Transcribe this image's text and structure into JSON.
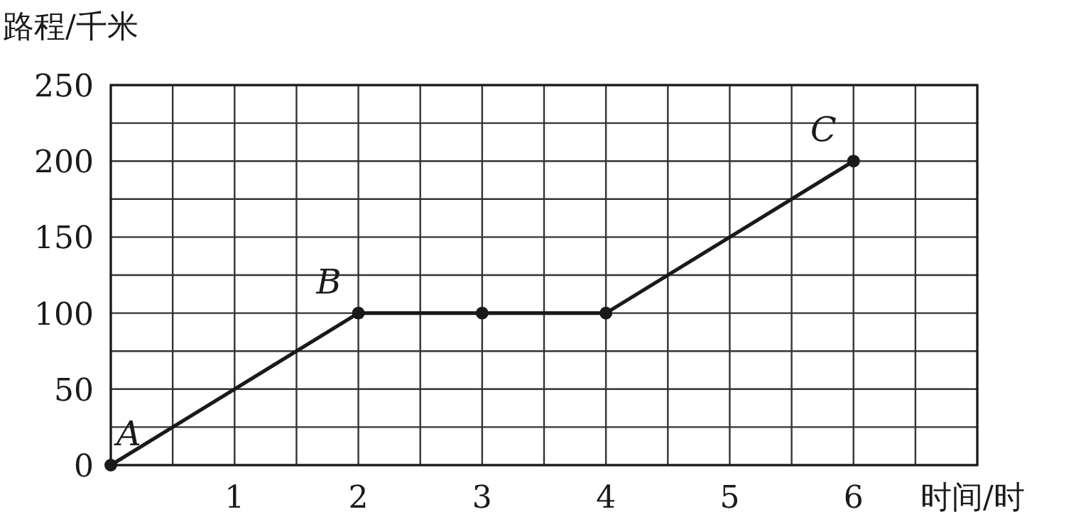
{
  "chart_data": {
    "type": "line",
    "xlabel": "时间/时",
    "ylabel": "路程/千米",
    "x": [
      0,
      2,
      3,
      4,
      6
    ],
    "series": [
      {
        "color": "#1a1a1a",
        "values": [
          0,
          100,
          100,
          100,
          200
        ]
      }
    ],
    "xlim": [
      0,
      7
    ],
    "ylim": [
      0,
      250
    ],
    "xticks": [
      {
        "value": 0,
        "label": null
      },
      {
        "value": 0.5,
        "label": null
      },
      1,
      {
        "value": 1.5,
        "label": null
      },
      2,
      {
        "value": 2.5,
        "label": null
      },
      3,
      {
        "value": 3.5,
        "label": null
      },
      4,
      {
        "value": 4.5,
        "label": null
      },
      5,
      {
        "value": 5.5,
        "label": null
      },
      6,
      {
        "value": 6.5,
        "label": null
      },
      {
        "value": 7,
        "label": null
      }
    ],
    "yticks": [
      0,
      {
        "value": 25,
        "label": null
      },
      50,
      {
        "value": 75,
        "label": null
      },
      100,
      {
        "value": 125,
        "label": null
      },
      150,
      {
        "value": 175,
        "label": null
      },
      200,
      {
        "value": 225,
        "label": null
      },
      250
    ],
    "grid": true,
    "marker": "circle",
    "line_style": "solid",
    "annotations": [
      {
        "text": "A",
        "x": 0,
        "y": 0
      },
      {
        "text": "B",
        "x": 2,
        "y": 100
      },
      {
        "text": "C",
        "x": 6,
        "y": 200
      }
    ]
  }
}
